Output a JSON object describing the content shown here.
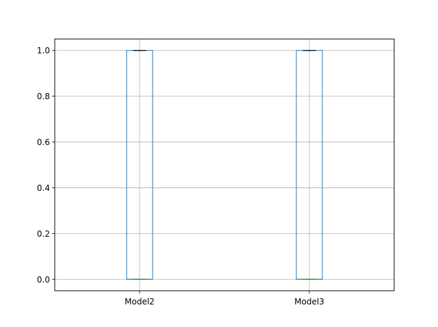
{
  "chart_data": {
    "type": "box",
    "title": "",
    "xlabel": "",
    "ylabel": "",
    "categories": [
      "Model2",
      "Model3"
    ],
    "boxes": [
      {
        "name": "Model2",
        "min": 0.0,
        "q1": 0.0,
        "median": 0.0,
        "q3": 1.0,
        "max": 1.0
      },
      {
        "name": "Model3",
        "min": 0.0,
        "q1": 0.0,
        "median": 0.0,
        "q3": 1.0,
        "max": 1.0
      }
    ],
    "yticks": [
      0.0,
      0.2,
      0.4,
      0.6,
      0.8,
      1.0
    ],
    "ytick_labels": [
      "0.0",
      "0.2",
      "0.4",
      "0.6",
      "0.8",
      "1.0"
    ],
    "ylim": [
      -0.05,
      1.05
    ],
    "grid": true,
    "colors": {
      "box": "#1f77b4",
      "median": "#2ca02c",
      "whisker": "#1f77b4",
      "cap": "#000000",
      "grid": "#b0b0b0",
      "axis": "#000000"
    }
  }
}
